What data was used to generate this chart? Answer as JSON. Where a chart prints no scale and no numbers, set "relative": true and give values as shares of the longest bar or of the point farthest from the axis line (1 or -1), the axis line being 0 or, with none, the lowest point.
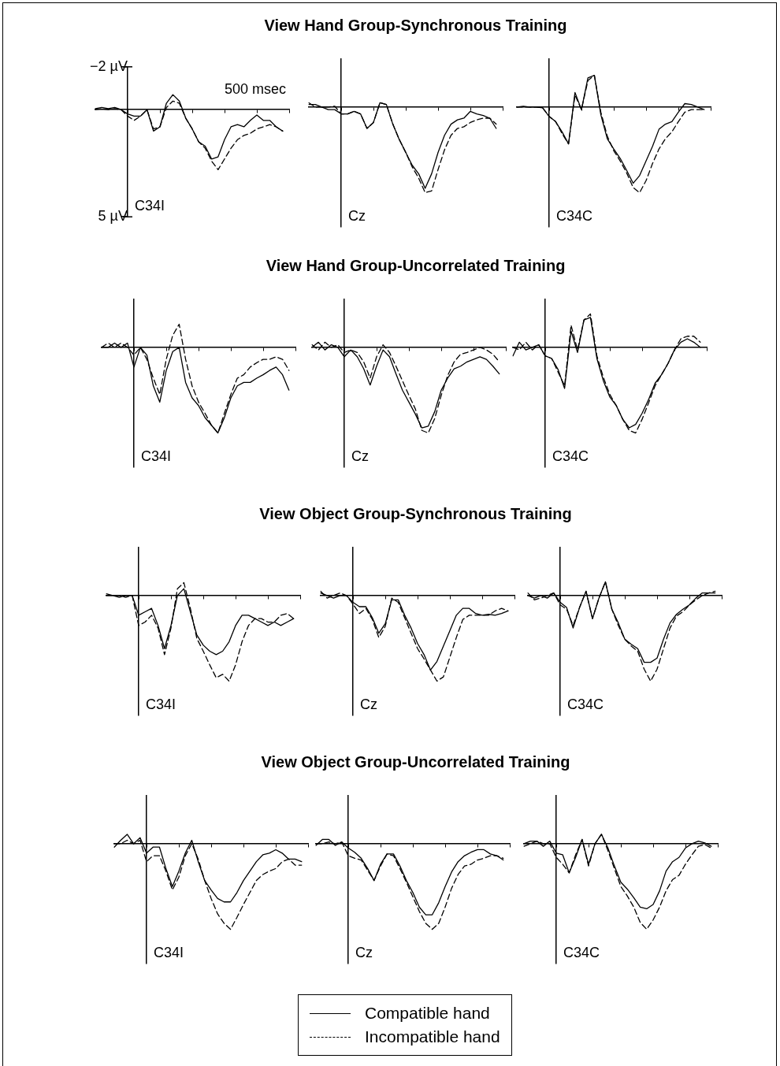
{
  "chart_data": [
    {
      "type": "line",
      "title": "View Hand Group-Synchronous Training",
      "annotations": [
        "500 msec",
        "C34I"
      ],
      "ylim": [
        5,
        -2
      ],
      "tick_labels": "y",
      "yticks": [
        {
          "value": -2,
          "label": "−2 µV"
        },
        {
          "value": 5,
          "label": "5 µV"
        }
      ],
      "categories": [
        null,
        null,
        null,
        null,
        null,
        null,
        null,
        null,
        null,
        null,
        null,
        null,
        null,
        null,
        null,
        null,
        null,
        null,
        null,
        null,
        null,
        null,
        null,
        null,
        null,
        null,
        null,
        null,
        null,
        null,
        null
      ],
      "series": [
        {
          "color": "#000000",
          "line_style": "solid",
          "values": [
            -0.05,
            -0.1,
            -0.05,
            -0.1,
            0,
            0.2,
            0.3,
            0.3,
            0,
            1.0,
            0.8,
            -0.3,
            -0.7,
            -0.4,
            0.4,
            0.9,
            1.5,
            1.7,
            2.3,
            2.2,
            1.4,
            0.8,
            0.7,
            0.8,
            0.5,
            0.25,
            0.5,
            0.5,
            0.8,
            1.0,
            null
          ]
        },
        {
          "color": "#000000",
          "line_style": "dashed",
          "values": [
            0,
            -0.05,
            0,
            -0.05,
            0,
            0.3,
            0.5,
            0.3,
            0,
            0.9,
            0.8,
            -0.1,
            -0.4,
            -0.3,
            0.4,
            0.9,
            1.5,
            1.8,
            2.4,
            2.8,
            2.3,
            1.8,
            1.4,
            1.2,
            1.1,
            0.9,
            0.8,
            0.7,
            0.8,
            1.0,
            null
          ]
        }
      ]
    },
    {
      "type": "line",
      "annotations": [
        "Cz"
      ],
      "relative": true,
      "tick_labels": false,
      "categories": [
        null,
        null,
        null,
        null,
        null,
        null,
        null,
        null,
        null,
        null,
        null,
        null,
        null,
        null,
        null,
        null,
        null,
        null,
        null,
        null,
        null,
        null,
        null,
        null,
        null,
        null,
        null,
        null,
        null,
        null,
        null
      ],
      "series": [
        {
          "color": "#000000",
          "line_style": "solid",
          "values": [
            0.03,
            0.03,
            0,
            -0.03,
            -0.03,
            -0.08,
            -0.08,
            -0.05,
            -0.08,
            -0.25,
            -0.18,
            0.05,
            0.03,
            -0.2,
            -0.38,
            -0.53,
            -0.68,
            -0.78,
            -0.95,
            -0.78,
            -0.53,
            -0.33,
            -0.2,
            -0.15,
            -0.13,
            -0.05,
            -0.08,
            -0.1,
            -0.13,
            -0.25,
            null
          ]
        },
        {
          "color": "#000000",
          "line_style": "dashed",
          "values": [
            0.05,
            0,
            0,
            0,
            0.01,
            -0.08,
            -0.08,
            -0.05,
            -0.08,
            -0.25,
            -0.18,
            0.05,
            0.03,
            -0.2,
            -0.38,
            -0.53,
            -0.7,
            -0.83,
            -1,
            -0.98,
            -0.73,
            -0.5,
            -0.33,
            -0.25,
            -0.23,
            -0.18,
            -0.15,
            -0.13,
            -0.13,
            -0.2,
            null
          ]
        }
      ]
    },
    {
      "type": "line",
      "annotations": [
        "C34C"
      ],
      "relative": true,
      "tick_labels": false,
      "categories": [
        null,
        null,
        null,
        null,
        null,
        null,
        null,
        null,
        null,
        null,
        null,
        null,
        null,
        null,
        null,
        null,
        null,
        null,
        null,
        null,
        null,
        null,
        null,
        null,
        null,
        null,
        null,
        null,
        null,
        null,
        null
      ],
      "series": [
        {
          "color": "#000000",
          "line_style": "solid",
          "values": [
            0,
            0.01,
            0,
            0,
            -0.01,
            -0.11,
            -0.17,
            -0.29,
            -0.43,
            0.17,
            -0.03,
            0.34,
            0.37,
            -0.09,
            -0.37,
            -0.49,
            -0.6,
            -0.74,
            -0.89,
            -0.8,
            -0.63,
            -0.46,
            -0.26,
            -0.2,
            -0.17,
            -0.06,
            0.04,
            0.03,
            0,
            -0.03,
            null
          ]
        },
        {
          "color": "#000000",
          "line_style": "dashed",
          "values": [
            0,
            0,
            0,
            0,
            -0.01,
            -0.11,
            -0.17,
            -0.31,
            -0.43,
            0.14,
            -0.03,
            0.31,
            0.37,
            -0.06,
            -0.34,
            -0.51,
            -0.63,
            -0.77,
            -0.94,
            -1,
            -0.86,
            -0.66,
            -0.49,
            -0.37,
            -0.29,
            -0.17,
            -0.06,
            -0.03,
            -0.03,
            -0.03,
            null
          ]
        }
      ]
    },
    {
      "type": "line",
      "title": "View Hand Group-Uncorrelated Training",
      "annotations": [
        "C34I"
      ],
      "relative": true,
      "tick_labels": false,
      "categories": [
        null,
        null,
        null,
        null,
        null,
        null,
        null,
        null,
        null,
        null,
        null,
        null,
        null,
        null,
        null,
        null,
        null,
        null,
        null,
        null,
        null,
        null,
        null,
        null,
        null,
        null,
        null,
        null,
        null,
        null,
        null
      ],
      "series": [
        {
          "color": "#000000",
          "line_style": "solid",
          "values": [
            0,
            0,
            0.05,
            0,
            0.05,
            -0.23,
            0,
            -0.09,
            -0.45,
            -0.64,
            -0.27,
            -0.05,
            0,
            -0.41,
            -0.59,
            -0.68,
            -0.82,
            -0.91,
            -1,
            -0.82,
            -0.59,
            -0.45,
            -0.41,
            -0.41,
            -0.36,
            -0.32,
            -0.27,
            -0.23,
            -0.32,
            -0.5,
            null
          ]
        },
        {
          "color": "#000000",
          "line_style": "dashed",
          "values": [
            0,
            0.05,
            0,
            0.05,
            0,
            -0.09,
            0,
            -0.14,
            -0.36,
            -0.55,
            -0.14,
            0.14,
            0.27,
            -0.14,
            -0.45,
            -0.64,
            -0.77,
            -0.91,
            -1,
            -0.77,
            -0.55,
            -0.36,
            -0.32,
            -0.23,
            -0.18,
            -0.14,
            -0.14,
            -0.11,
            -0.14,
            -0.27,
            null
          ]
        }
      ]
    },
    {
      "type": "line",
      "annotations": [
        "Cz"
      ],
      "relative": true,
      "tick_labels": false,
      "categories": [
        null,
        null,
        null,
        null,
        null,
        null,
        null,
        null,
        null,
        null,
        null,
        null,
        null,
        null,
        null,
        null,
        null,
        null,
        null,
        null,
        null,
        null,
        null,
        null,
        null,
        null,
        null,
        null,
        null,
        null,
        null
      ],
      "series": [
        {
          "color": "#000000",
          "line_style": "solid",
          "values": [
            0,
            0.06,
            -0.03,
            0.03,
            0,
            -0.11,
            -0.03,
            -0.11,
            -0.25,
            -0.44,
            -0.22,
            -0.03,
            -0.11,
            -0.31,
            -0.5,
            -0.64,
            -0.78,
            -0.94,
            -0.92,
            -0.75,
            -0.5,
            -0.36,
            -0.25,
            -0.22,
            -0.17,
            -0.14,
            -0.11,
            -0.14,
            -0.22,
            -0.31,
            null
          ]
        },
        {
          "color": "#000000",
          "line_style": "dashed",
          "values": [
            0.03,
            -0.03,
            0.06,
            0,
            0.03,
            -0.06,
            -0.03,
            -0.06,
            -0.17,
            -0.36,
            -0.11,
            0.03,
            -0.06,
            -0.22,
            -0.39,
            -0.56,
            -0.72,
            -0.97,
            -1,
            -0.83,
            -0.56,
            -0.33,
            -0.17,
            -0.08,
            -0.06,
            -0.03,
            0,
            -0.03,
            -0.08,
            -0.17,
            null
          ]
        }
      ]
    },
    {
      "type": "line",
      "annotations": [
        "C34C"
      ],
      "relative": true,
      "tick_labels": false,
      "categories": [
        null,
        null,
        null,
        null,
        null,
        null,
        null,
        null,
        null,
        null,
        null,
        null,
        null,
        null,
        null,
        null,
        null,
        null,
        null,
        null,
        null,
        null,
        null,
        null,
        null,
        null,
        null,
        null,
        null,
        null,
        null
      ],
      "series": [
        {
          "color": "#000000",
          "line_style": "solid",
          "values": [
            -0.1,
            0.06,
            -0.03,
            0,
            0.03,
            -0.1,
            -0.13,
            -0.26,
            -0.48,
            0.19,
            -0.06,
            0.32,
            0.35,
            -0.13,
            -0.39,
            -0.58,
            -0.68,
            -0.84,
            -0.94,
            -0.9,
            -0.77,
            -0.61,
            -0.42,
            -0.32,
            -0.19,
            -0.03,
            0.06,
            0.1,
            0.06,
            0,
            null
          ]
        },
        {
          "color": "#000000",
          "line_style": "dashed",
          "values": [
            0,
            -0.03,
            0.06,
            -0.03,
            0.03,
            -0.1,
            -0.13,
            -0.29,
            -0.45,
            0.26,
            -0.03,
            0.32,
            0.39,
            -0.1,
            -0.35,
            -0.55,
            -0.68,
            -0.84,
            -0.97,
            -1,
            -0.84,
            -0.65,
            -0.45,
            -0.32,
            -0.19,
            -0.03,
            0.1,
            0.13,
            0.13,
            0.06,
            null
          ]
        }
      ]
    },
    {
      "type": "line",
      "title": "View Object Group-Synchronous Training",
      "annotations": [
        "C34I"
      ],
      "relative": true,
      "tick_labels": false,
      "categories": [
        null,
        null,
        null,
        null,
        null,
        null,
        null,
        null,
        null,
        null,
        null,
        null,
        null,
        null,
        null,
        null,
        null,
        null,
        null,
        null,
        null,
        null,
        null,
        null,
        null,
        null,
        null,
        null,
        null,
        null,
        null
      ],
      "series": [
        {
          "color": "#000000",
          "line_style": "solid",
          "values": [
            0.02,
            0,
            -0.02,
            0,
            0,
            -0.23,
            -0.19,
            -0.15,
            -0.35,
            -0.62,
            -0.35,
            0,
            0.08,
            -0.19,
            -0.46,
            -0.58,
            -0.65,
            -0.69,
            -0.65,
            -0.54,
            -0.35,
            -0.23,
            -0.23,
            -0.27,
            -0.31,
            -0.35,
            -0.31,
            -0.35,
            -0.31,
            -0.27,
            null
          ]
        },
        {
          "color": "#000000",
          "line_style": "dashed",
          "values": [
            0,
            0,
            0,
            -0.02,
            0,
            -0.35,
            -0.31,
            -0.23,
            -0.38,
            -0.69,
            -0.38,
            0.08,
            0.15,
            -0.15,
            -0.5,
            -0.65,
            -0.81,
            -0.96,
            -0.92,
            -1,
            -0.81,
            -0.54,
            -0.35,
            -0.27,
            -0.27,
            -0.31,
            -0.31,
            -0.23,
            -0.21,
            -0.27,
            null
          ]
        }
      ]
    },
    {
      "type": "line",
      "annotations": [
        "Cz"
      ],
      "relative": true,
      "tick_labels": false,
      "categories": [
        null,
        null,
        null,
        null,
        null,
        null,
        null,
        null,
        null,
        null,
        null,
        null,
        null,
        null,
        null,
        null,
        null,
        null,
        null,
        null,
        null,
        null,
        null,
        null,
        null,
        null,
        null,
        null,
        null,
        null,
        null
      ],
      "series": [
        {
          "color": "#000000",
          "line_style": "solid",
          "values": [
            0.03,
            0,
            -0.03,
            0,
            0,
            -0.08,
            -0.13,
            -0.13,
            -0.26,
            -0.44,
            -0.33,
            -0.05,
            -0.05,
            -0.23,
            -0.38,
            -0.56,
            -0.69,
            -0.87,
            -0.77,
            -0.59,
            -0.41,
            -0.23,
            -0.15,
            -0.15,
            -0.21,
            -0.23,
            -0.22,
            -0.23,
            -0.21,
            -0.18,
            null
          ]
        },
        {
          "color": "#000000",
          "line_style": "dashed",
          "values": [
            0.05,
            -0.03,
            0,
            0.03,
            0,
            -0.1,
            -0.21,
            -0.15,
            -0.28,
            -0.49,
            -0.36,
            -0.03,
            -0.08,
            -0.26,
            -0.44,
            -0.62,
            -0.74,
            -0.87,
            -1,
            -0.95,
            -0.72,
            -0.49,
            -0.28,
            -0.23,
            -0.23,
            -0.23,
            -0.23,
            -0.18,
            -0.15,
            -0.18,
            null
          ]
        }
      ]
    },
    {
      "type": "line",
      "annotations": [
        "C34C"
      ],
      "relative": true,
      "tick_labels": false,
      "categories": [
        null,
        null,
        null,
        null,
        null,
        null,
        null,
        null,
        null,
        null,
        null,
        null,
        null,
        null,
        null,
        null,
        null,
        null,
        null,
        null,
        null,
        null,
        null,
        null,
        null,
        null,
        null,
        null,
        null,
        null,
        null
      ],
      "series": [
        {
          "color": "#000000",
          "line_style": "solid",
          "values": [
            0,
            -0.03,
            0,
            -0.03,
            0.03,
            -0.08,
            -0.14,
            -0.38,
            -0.14,
            0.05,
            -0.27,
            -0.03,
            0.16,
            -0.16,
            -0.32,
            -0.51,
            -0.57,
            -0.62,
            -0.78,
            -0.78,
            -0.73,
            -0.51,
            -0.32,
            -0.22,
            -0.16,
            -0.11,
            -0.03,
            0.03,
            0.03,
            0.03,
            null
          ]
        },
        {
          "color": "#000000",
          "line_style": "dashed",
          "values": [
            0.03,
            -0.05,
            -0.03,
            0,
            0.03,
            -0.11,
            -0.16,
            -0.35,
            -0.14,
            0.05,
            -0.27,
            -0.03,
            0.16,
            -0.16,
            -0.35,
            -0.51,
            -0.59,
            -0.65,
            -0.86,
            -1,
            -0.86,
            -0.62,
            -0.38,
            -0.24,
            -0.19,
            -0.11,
            -0.05,
            0,
            0.03,
            0.05,
            null
          ]
        }
      ]
    },
    {
      "type": "line",
      "title": "View Object Group-Uncorrelated Training",
      "annotations": [
        "C34I"
      ],
      "relative": true,
      "tick_labels": false,
      "categories": [
        null,
        null,
        null,
        null,
        null,
        null,
        null,
        null,
        null,
        null,
        null,
        null,
        null,
        null,
        null,
        null,
        null,
        null,
        null,
        null,
        null,
        null,
        null,
        null,
        null,
        null,
        null,
        null,
        null,
        null,
        null
      ],
      "series": [
        {
          "color": "#000000",
          "line_style": "solid",
          "values": [
            -0.04,
            0.04,
            0.11,
            0,
            0.07,
            -0.11,
            -0.04,
            -0.04,
            -0.29,
            -0.5,
            -0.32,
            -0.11,
            0.04,
            -0.21,
            -0.43,
            -0.54,
            -0.64,
            -0.68,
            -0.68,
            -0.57,
            -0.43,
            -0.32,
            -0.21,
            -0.13,
            -0.11,
            -0.07,
            -0.11,
            -0.18,
            -0.18,
            -0.21,
            null
          ]
        },
        {
          "color": "#000000",
          "line_style": "dashed",
          "values": [
            0,
            0,
            0.04,
            0,
            0.04,
            -0.21,
            -0.14,
            -0.14,
            -0.32,
            -0.54,
            -0.39,
            -0.14,
            0,
            -0.18,
            -0.43,
            -0.64,
            -0.82,
            -0.93,
            -1,
            -0.86,
            -0.71,
            -0.57,
            -0.43,
            -0.36,
            -0.32,
            -0.29,
            -0.21,
            -0.18,
            -0.25,
            -0.25,
            null
          ]
        }
      ]
    },
    {
      "type": "line",
      "annotations": [
        "Cz"
      ],
      "relative": true,
      "tick_labels": false,
      "categories": [
        null,
        null,
        null,
        null,
        null,
        null,
        null,
        null,
        null,
        null,
        null,
        null,
        null,
        null,
        null,
        null,
        null,
        null,
        null,
        null,
        null,
        null,
        null,
        null,
        null,
        null,
        null,
        null,
        null,
        null,
        null
      ],
      "series": [
        {
          "color": "#000000",
          "line_style": "solid",
          "values": [
            -0.02,
            0.05,
            0.05,
            -0.02,
            0.02,
            -0.05,
            -0.1,
            -0.17,
            -0.29,
            -0.43,
            -0.24,
            -0.12,
            -0.12,
            -0.26,
            -0.43,
            -0.57,
            -0.74,
            -0.83,
            -0.83,
            -0.69,
            -0.5,
            -0.33,
            -0.21,
            -0.14,
            -0.1,
            -0.07,
            -0.07,
            -0.12,
            -0.14,
            -0.19,
            null
          ]
        },
        {
          "color": "#000000",
          "line_style": "dashed",
          "values": [
            0,
            0,
            0.02,
            0,
            0.02,
            -0.14,
            -0.17,
            -0.19,
            -0.31,
            -0.43,
            -0.26,
            -0.12,
            -0.14,
            -0.29,
            -0.45,
            -0.62,
            -0.79,
            -0.93,
            -1,
            -0.93,
            -0.74,
            -0.52,
            -0.36,
            -0.26,
            -0.24,
            -0.19,
            -0.17,
            -0.14,
            -0.14,
            -0.17,
            null
          ]
        }
      ]
    },
    {
      "type": "line",
      "annotations": [
        "C34C"
      ],
      "relative": true,
      "tick_labels": false,
      "legend": "bottom",
      "categories": [
        null,
        null,
        null,
        null,
        null,
        null,
        null,
        null,
        null,
        null,
        null,
        null,
        null,
        null,
        null,
        null,
        null,
        null,
        null,
        null,
        null,
        null,
        null,
        null,
        null,
        null,
        null,
        null,
        null,
        null,
        null
      ],
      "series": [
        {
          "name": "Compatible hand",
          "color": "#000000",
          "line_style": "solid",
          "values": [
            0,
            0.03,
            0.03,
            -0.03,
            0.03,
            -0.11,
            -0.13,
            -0.34,
            -0.16,
            0.05,
            -0.24,
            0,
            0.11,
            -0.05,
            -0.26,
            -0.45,
            -0.53,
            -0.63,
            -0.74,
            -0.76,
            -0.71,
            -0.55,
            -0.32,
            -0.21,
            -0.16,
            -0.05,
            0,
            0.03,
            0.01,
            -0.03,
            null
          ]
        },
        {
          "name": "Incompatible hand",
          "color": "#000000",
          "line_style": "dashed",
          "values": [
            -0.03,
            0,
            0.03,
            0,
            0,
            -0.16,
            -0.24,
            -0.34,
            -0.13,
            0.05,
            -0.26,
            0,
            0.11,
            -0.08,
            -0.29,
            -0.5,
            -0.61,
            -0.74,
            -0.92,
            -1,
            -0.89,
            -0.74,
            -0.55,
            -0.42,
            -0.37,
            -0.24,
            -0.13,
            -0.03,
            -0.01,
            -0.05,
            null
          ]
        }
      ]
    }
  ]
}
